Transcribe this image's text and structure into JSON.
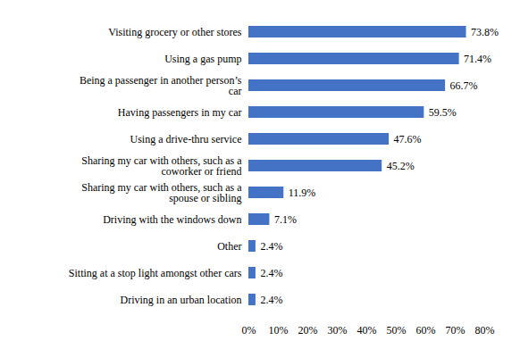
{
  "chart_data": {
    "type": "bar",
    "orientation": "horizontal",
    "categories": [
      "Visiting grocery or other stores",
      "Using a gas pump",
      "Being a passenger in another person’s car",
      "Having passengers in my car",
      "Using a drive-thru service",
      "Sharing my car with others, such as a coworker or friend",
      "Sharing my car with others, such as a spouse or sibling",
      "Driving with the windows down",
      "Other",
      "Sitting at a stop light amongst other cars",
      "Driving in an urban location"
    ],
    "values": [
      73.8,
      71.4,
      66.7,
      59.5,
      47.6,
      45.2,
      11.9,
      7.1,
      2.4,
      2.4,
      2.4
    ],
    "value_labels": [
      "73.8%",
      "71.4%",
      "66.7%",
      "59.5%",
      "47.6%",
      "45.2%",
      "11.9%",
      "7.1%",
      "2.4%",
      "2.4%",
      "2.4%"
    ],
    "data_labels": true,
    "color": "#4472c4",
    "xlim": [
      0,
      80
    ],
    "xticks": [
      {
        "value": 0,
        "label": "0%"
      },
      {
        "value": 10,
        "label": "10%"
      },
      {
        "value": 20,
        "label": "20%"
      },
      {
        "value": 30,
        "label": "30%"
      },
      {
        "value": 40,
        "label": "40%"
      },
      {
        "value": 50,
        "label": "50%"
      },
      {
        "value": 60,
        "label": "60%"
      },
      {
        "value": 70,
        "label": "70%"
      },
      {
        "value": 80,
        "label": "80%"
      }
    ],
    "grid": false
  }
}
